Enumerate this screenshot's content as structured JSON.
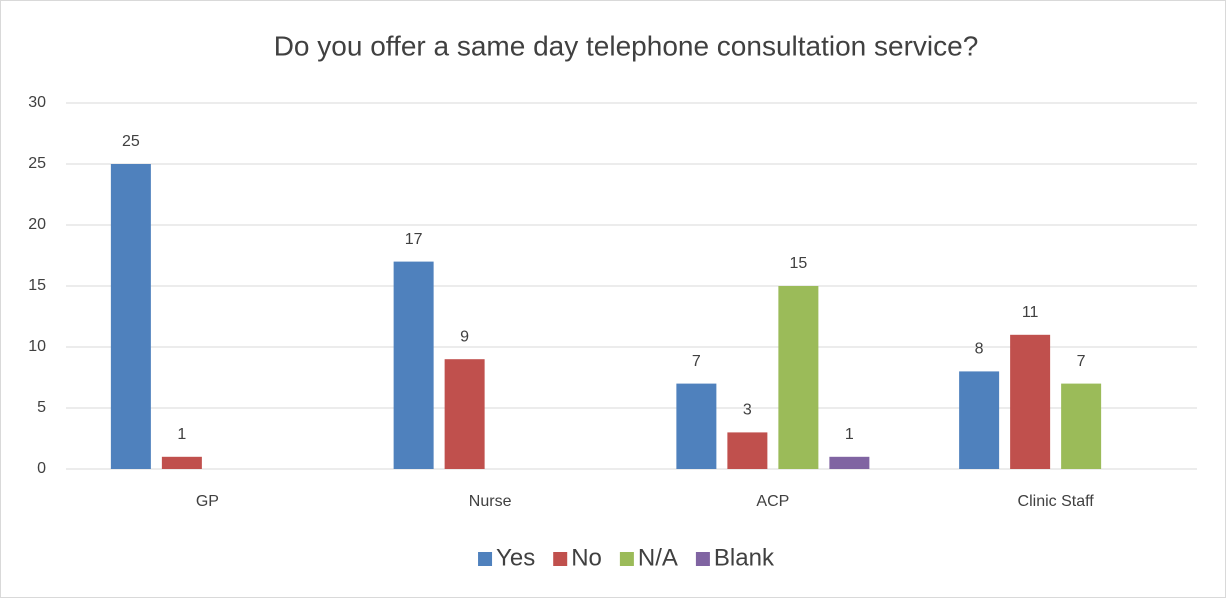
{
  "chart_data": {
    "type": "bar",
    "title": "Do you offer a same day telephone consultation service?",
    "categories": [
      "GP",
      "Nurse",
      "ACP",
      "Clinic Staff"
    ],
    "series": [
      {
        "name": "Yes",
        "color": "#4f81bd",
        "values": [
          25,
          17,
          7,
          8
        ]
      },
      {
        "name": "No",
        "color": "#c0504d",
        "values": [
          1,
          9,
          3,
          11
        ]
      },
      {
        "name": "N/A",
        "color": "#9bbb59",
        "values": [
          null,
          null,
          15,
          7
        ]
      },
      {
        "name": "Blank",
        "color": "#8064a2",
        "values": [
          null,
          null,
          1,
          null
        ]
      }
    ],
    "ylim": [
      0,
      30
    ],
    "yticks": [
      0,
      5,
      10,
      15,
      20,
      25,
      30
    ],
    "grid": true,
    "legend": "bottom"
  }
}
